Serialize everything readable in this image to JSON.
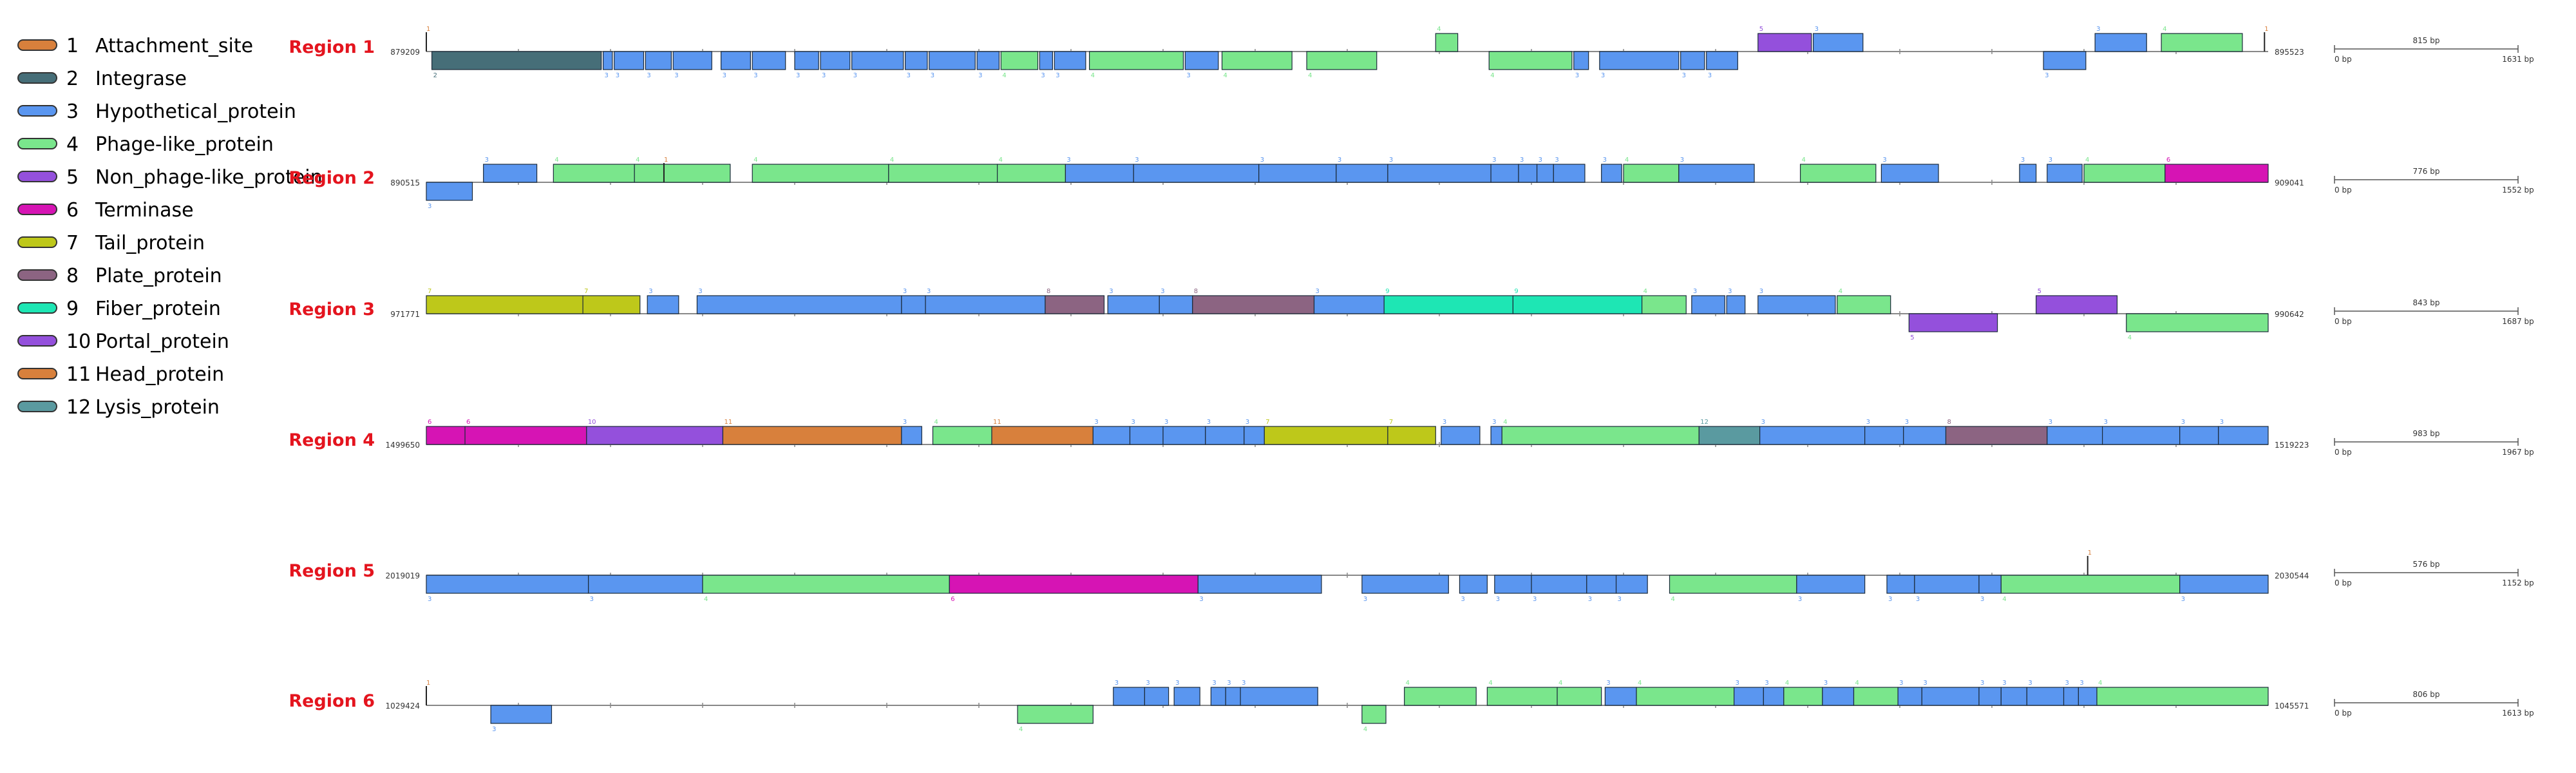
{
  "legend": [
    {
      "num": "1",
      "label": "Attachment_site",
      "color": "#d8803c"
    },
    {
      "num": "2",
      "label": "Integrase",
      "color": "#466e78"
    },
    {
      "num": "3",
      "label": "Hypothetical_protein",
      "color": "#5a96f0"
    },
    {
      "num": "4",
      "label": "Phage-like_protein",
      "color": "#7ae68c"
    },
    {
      "num": "5",
      "label": "Non_phage-like_protein",
      "color": "#9450dc"
    },
    {
      "num": "6",
      "label": "Terminase",
      "color": "#d614b4"
    },
    {
      "num": "7",
      "label": "Tail_protein",
      "color": "#bec81a"
    },
    {
      "num": "8",
      "label": "Plate_protein",
      "color": "#8c6482"
    },
    {
      "num": "9",
      "label": "Fiber_protein",
      "color": "#1ee6b4"
    },
    {
      "num": "10",
      "label": "Portal_protein",
      "color": "#9450dc"
    },
    {
      "num": "11",
      "label": "Head_protein",
      "color": "#d8803c"
    },
    {
      "num": "12",
      "label": "Lysis_protein",
      "color": "#5a9aa0"
    }
  ],
  "regions": [
    {
      "name": "Region 1",
      "start": "879209",
      "end": "895523",
      "scale_label": "815 bp",
      "scale_start": "0 bp",
      "scale_end": "1631 bp",
      "genes": [
        {
          "t": 1,
          "s": 0.0,
          "e": 0.002,
          "st": "mark"
        },
        {
          "t": 2,
          "s": 0.003,
          "e": 0.095,
          "st": "bottom"
        },
        {
          "t": 3,
          "s": 0.096,
          "e": 0.101,
          "st": "bottom"
        },
        {
          "t": 3,
          "s": 0.102,
          "e": 0.118,
          "st": "bottom"
        },
        {
          "t": 3,
          "s": 0.119,
          "e": 0.133,
          "st": "bottom"
        },
        {
          "t": 3,
          "s": 0.134,
          "e": 0.155,
          "st": "bottom"
        },
        {
          "t": 3,
          "s": 0.16,
          "e": 0.176,
          "st": "bottom"
        },
        {
          "t": 3,
          "s": 0.177,
          "e": 0.195,
          "st": "bottom"
        },
        {
          "t": 3,
          "s": 0.2,
          "e": 0.213,
          "st": "bottom"
        },
        {
          "t": 3,
          "s": 0.214,
          "e": 0.23,
          "st": "bottom"
        },
        {
          "t": 3,
          "s": 0.231,
          "e": 0.259,
          "st": "bottom"
        },
        {
          "t": 3,
          "s": 0.26,
          "e": 0.272,
          "st": "bottom"
        },
        {
          "t": 3,
          "s": 0.273,
          "e": 0.298,
          "st": "bottom"
        },
        {
          "t": 3,
          "s": 0.299,
          "e": 0.311,
          "st": "bottom"
        },
        {
          "t": 4,
          "s": 0.312,
          "e": 0.332,
          "st": "bottom"
        },
        {
          "t": 3,
          "s": 0.333,
          "e": 0.34,
          "st": "bottom"
        },
        {
          "t": 3,
          "s": 0.341,
          "e": 0.358,
          "st": "bottom"
        },
        {
          "t": 4,
          "s": 0.36,
          "e": 0.411,
          "st": "bottom"
        },
        {
          "t": 3,
          "s": 0.412,
          "e": 0.43,
          "st": "bottom"
        },
        {
          "t": 4,
          "s": 0.432,
          "e": 0.47,
          "st": "bottom"
        },
        {
          "t": 4,
          "s": 0.478,
          "e": 0.516,
          "st": "bottom"
        },
        {
          "t": 4,
          "s": 0.548,
          "e": 0.56,
          "st": "top"
        },
        {
          "t": 4,
          "s": 0.577,
          "e": 0.622,
          "st": "bottom"
        },
        {
          "t": 3,
          "s": 0.623,
          "e": 0.631,
          "st": "bottom"
        },
        {
          "t": 3,
          "s": 0.637,
          "e": 0.68,
          "st": "bottom"
        },
        {
          "t": 3,
          "s": 0.681,
          "e": 0.694,
          "st": "bottom"
        },
        {
          "t": 3,
          "s": 0.695,
          "e": 0.712,
          "st": "bottom"
        },
        {
          "t": 5,
          "s": 0.723,
          "e": 0.752,
          "st": "top"
        },
        {
          "t": 3,
          "s": 0.753,
          "e": 0.78,
          "st": "top"
        },
        {
          "t": 3,
          "s": 0.878,
          "e": 0.901,
          "st": "bottom"
        },
        {
          "t": 3,
          "s": 0.906,
          "e": 0.934,
          "st": "top"
        },
        {
          "t": 4,
          "s": 0.942,
          "e": 0.986,
          "st": "top"
        },
        {
          "t": 1,
          "s": 0.998,
          "e": 1.0,
          "st": "mark"
        }
      ]
    },
    {
      "name": "Region 2",
      "start": "890515",
      "end": "909041",
      "scale_label": "776 bp",
      "scale_start": "0 bp",
      "scale_end": "1552 bp",
      "genes": [
        {
          "t": 3,
          "s": 0.0,
          "e": 0.025,
          "st": "bottom"
        },
        {
          "t": 3,
          "s": 0.031,
          "e": 0.06,
          "st": "top"
        },
        {
          "t": 4,
          "s": 0.069,
          "e": 0.113,
          "st": "top"
        },
        {
          "t": 4,
          "s": 0.113,
          "e": 0.165,
          "st": "top"
        },
        {
          "t": 1,
          "s": 0.129,
          "e": 0.131,
          "st": "mark"
        },
        {
          "t": 4,
          "s": 0.177,
          "e": 0.251,
          "st": "top"
        },
        {
          "t": 4,
          "s": 0.251,
          "e": 0.31,
          "st": "top"
        },
        {
          "t": 4,
          "s": 0.31,
          "e": 0.347,
          "st": "top"
        },
        {
          "t": 3,
          "s": 0.347,
          "e": 0.384,
          "st": "top"
        },
        {
          "t": 3,
          "s": 0.384,
          "e": 0.452,
          "st": "top"
        },
        {
          "t": 3,
          "s": 0.452,
          "e": 0.494,
          "st": "top"
        },
        {
          "t": 3,
          "s": 0.494,
          "e": 0.522,
          "st": "top"
        },
        {
          "t": 3,
          "s": 0.522,
          "e": 0.578,
          "st": "top"
        },
        {
          "t": 3,
          "s": 0.578,
          "e": 0.593,
          "st": "top"
        },
        {
          "t": 3,
          "s": 0.593,
          "e": 0.603,
          "st": "top"
        },
        {
          "t": 3,
          "s": 0.603,
          "e": 0.612,
          "st": "top"
        },
        {
          "t": 3,
          "s": 0.612,
          "e": 0.629,
          "st": "top"
        },
        {
          "t": 3,
          "s": 0.638,
          "e": 0.649,
          "st": "top"
        },
        {
          "t": 4,
          "s": 0.65,
          "e": 0.68,
          "st": "top"
        },
        {
          "t": 3,
          "s": 0.68,
          "e": 0.721,
          "st": "top"
        },
        {
          "t": 4,
          "s": 0.746,
          "e": 0.787,
          "st": "top"
        },
        {
          "t": 3,
          "s": 0.79,
          "e": 0.821,
          "st": "top"
        },
        {
          "t": 3,
          "s": 0.865,
          "e": 0.874,
          "st": "top"
        },
        {
          "t": 3,
          "s": 0.88,
          "e": 0.899,
          "st": "top"
        },
        {
          "t": 4,
          "s": 0.9,
          "e": 0.944,
          "st": "top"
        },
        {
          "t": 6,
          "s": 0.944,
          "e": 1.0,
          "st": "top"
        }
      ]
    },
    {
      "name": "Region 3",
      "start": "971771",
      "end": "990642",
      "scale_label": "843 bp",
      "scale_start": "0 bp",
      "scale_end": "1687 bp",
      "genes": [
        {
          "t": 7,
          "s": 0.0,
          "e": 0.085,
          "st": "top"
        },
        {
          "t": 7,
          "s": 0.085,
          "e": 0.116,
          "st": "top"
        },
        {
          "t": 3,
          "s": 0.12,
          "e": 0.137,
          "st": "top"
        },
        {
          "t": 3,
          "s": 0.147,
          "e": 0.258,
          "st": "top"
        },
        {
          "t": 3,
          "s": 0.258,
          "e": 0.271,
          "st": "top"
        },
        {
          "t": 3,
          "s": 0.271,
          "e": 0.336,
          "st": "top"
        },
        {
          "t": 8,
          "s": 0.336,
          "e": 0.368,
          "st": "top"
        },
        {
          "t": 3,
          "s": 0.37,
          "e": 0.398,
          "st": "top"
        },
        {
          "t": 3,
          "s": 0.398,
          "e": 0.416,
          "st": "top"
        },
        {
          "t": 8,
          "s": 0.416,
          "e": 0.482,
          "st": "top"
        },
        {
          "t": 3,
          "s": 0.482,
          "e": 0.52,
          "st": "top"
        },
        {
          "t": 9,
          "s": 0.52,
          "e": 0.59,
          "st": "top"
        },
        {
          "t": 9,
          "s": 0.59,
          "e": 0.66,
          "st": "top"
        },
        {
          "t": 4,
          "s": 0.66,
          "e": 0.684,
          "st": "top"
        },
        {
          "t": 3,
          "s": 0.687,
          "e": 0.705,
          "st": "top"
        },
        {
          "t": 3,
          "s": 0.706,
          "e": 0.716,
          "st": "top"
        },
        {
          "t": 3,
          "s": 0.723,
          "e": 0.765,
          "st": "top"
        },
        {
          "t": 4,
          "s": 0.766,
          "e": 0.795,
          "st": "top"
        },
        {
          "t": 5,
          "s": 0.805,
          "e": 0.853,
          "st": "bottom"
        },
        {
          "t": 5,
          "s": 0.874,
          "e": 0.918,
          "st": "top"
        },
        {
          "t": 4,
          "s": 0.923,
          "e": 1.0,
          "st": "bottom"
        }
      ]
    },
    {
      "name": "Region 4",
      "start": "1499650",
      "end": "1519223",
      "scale_label": "983 bp",
      "scale_start": "0 bp",
      "scale_end": "1967 bp",
      "genes": [
        {
          "t": 6,
          "s": 0.0,
          "e": 0.021,
          "st": "top"
        },
        {
          "t": 6,
          "s": 0.021,
          "e": 0.087,
          "st": "top"
        },
        {
          "t": 10,
          "s": 0.087,
          "e": 0.161,
          "st": "top"
        },
        {
          "t": 11,
          "s": 0.161,
          "e": 0.258,
          "st": "top"
        },
        {
          "t": 3,
          "s": 0.258,
          "e": 0.269,
          "st": "top"
        },
        {
          "t": 4,
          "s": 0.275,
          "e": 0.307,
          "st": "top"
        },
        {
          "t": 11,
          "s": 0.307,
          "e": 0.362,
          "st": "top"
        },
        {
          "t": 3,
          "s": 0.362,
          "e": 0.382,
          "st": "top"
        },
        {
          "t": 3,
          "s": 0.382,
          "e": 0.4,
          "st": "top"
        },
        {
          "t": 3,
          "s": 0.4,
          "e": 0.423,
          "st": "top"
        },
        {
          "t": 3,
          "s": 0.423,
          "e": 0.444,
          "st": "top"
        },
        {
          "t": 3,
          "s": 0.444,
          "e": 0.455,
          "st": "top"
        },
        {
          "t": 7,
          "s": 0.455,
          "e": 0.522,
          "st": "top"
        },
        {
          "t": 7,
          "s": 0.522,
          "e": 0.548,
          "st": "top"
        },
        {
          "t": 3,
          "s": 0.551,
          "e": 0.572,
          "st": "top"
        },
        {
          "t": 3,
          "s": 0.578,
          "e": 0.584,
          "st": "top"
        },
        {
          "t": 4,
          "s": 0.584,
          "e": 0.691,
          "st": "top"
        },
        {
          "t": 12,
          "s": 0.691,
          "e": 0.724,
          "st": "top"
        },
        {
          "t": 3,
          "s": 0.724,
          "e": 0.781,
          "st": "top"
        },
        {
          "t": 3,
          "s": 0.781,
          "e": 0.802,
          "st": "top"
        },
        {
          "t": 3,
          "s": 0.802,
          "e": 0.825,
          "st": "top"
        },
        {
          "t": 8,
          "s": 0.825,
          "e": 0.88,
          "st": "top"
        },
        {
          "t": 3,
          "s": 0.88,
          "e": 0.91,
          "st": "top"
        },
        {
          "t": 3,
          "s": 0.91,
          "e": 0.952,
          "st": "top"
        },
        {
          "t": 3,
          "s": 0.952,
          "e": 0.973,
          "st": "top"
        },
        {
          "t": 3,
          "s": 0.973,
          "e": 1.0,
          "st": "top"
        }
      ]
    },
    {
      "name": "Region 5",
      "start": "2019019",
      "end": "2030544",
      "scale_label": "576 bp",
      "scale_start": "0 bp",
      "scale_end": "1152 bp",
      "genes": [
        {
          "t": 3,
          "s": 0.0,
          "e": 0.088,
          "st": "bottom"
        },
        {
          "t": 3,
          "s": 0.088,
          "e": 0.15,
          "st": "bottom"
        },
        {
          "t": 4,
          "s": 0.15,
          "e": 0.284,
          "st": "bottom"
        },
        {
          "t": 6,
          "s": 0.284,
          "e": 0.419,
          "st": "bottom"
        },
        {
          "t": 3,
          "s": 0.419,
          "e": 0.486,
          "st": "bottom"
        },
        {
          "t": 3,
          "s": 0.508,
          "e": 0.555,
          "st": "bottom"
        },
        {
          "t": 3,
          "s": 0.561,
          "e": 0.576,
          "st": "bottom"
        },
        {
          "t": 3,
          "s": 0.58,
          "e": 0.6,
          "st": "bottom"
        },
        {
          "t": 3,
          "s": 0.6,
          "e": 0.63,
          "st": "bottom"
        },
        {
          "t": 3,
          "s": 0.63,
          "e": 0.646,
          "st": "bottom"
        },
        {
          "t": 3,
          "s": 0.646,
          "e": 0.663,
          "st": "bottom"
        },
        {
          "t": 4,
          "s": 0.675,
          "e": 0.744,
          "st": "bottom"
        },
        {
          "t": 3,
          "s": 0.744,
          "e": 0.781,
          "st": "bottom"
        },
        {
          "t": 3,
          "s": 0.793,
          "e": 0.808,
          "st": "bottom"
        },
        {
          "t": 3,
          "s": 0.808,
          "e": 0.843,
          "st": "bottom"
        },
        {
          "t": 3,
          "s": 0.843,
          "e": 0.855,
          "st": "bottom"
        },
        {
          "t": 4,
          "s": 0.855,
          "e": 0.952,
          "st": "bottom"
        },
        {
          "t": 1,
          "s": 0.902,
          "e": 0.904,
          "st": "mark"
        },
        {
          "t": 3,
          "s": 0.952,
          "e": 1.0,
          "st": "bottom"
        }
      ]
    },
    {
      "name": "Region 6",
      "start": "1029424",
      "end": "1045571",
      "scale_label": "806 bp",
      "scale_start": "0 bp",
      "scale_end": "1613 bp",
      "genes": [
        {
          "t": 1,
          "s": 0.0,
          "e": 0.002,
          "st": "mark"
        },
        {
          "t": 3,
          "s": 0.035,
          "e": 0.068,
          "st": "bottom"
        },
        {
          "t": 4,
          "s": 0.321,
          "e": 0.362,
          "st": "bottom"
        },
        {
          "t": 3,
          "s": 0.373,
          "e": 0.39,
          "st": "top"
        },
        {
          "t": 3,
          "s": 0.39,
          "e": 0.403,
          "st": "top"
        },
        {
          "t": 3,
          "s": 0.406,
          "e": 0.42,
          "st": "top"
        },
        {
          "t": 3,
          "s": 0.426,
          "e": 0.434,
          "st": "top"
        },
        {
          "t": 3,
          "s": 0.434,
          "e": 0.442,
          "st": "top"
        },
        {
          "t": 3,
          "s": 0.442,
          "e": 0.484,
          "st": "top"
        },
        {
          "t": 4,
          "s": 0.508,
          "e": 0.521,
          "st": "bottom"
        },
        {
          "t": 4,
          "s": 0.531,
          "e": 0.57,
          "st": "top"
        },
        {
          "t": 4,
          "s": 0.576,
          "e": 0.614,
          "st": "top"
        },
        {
          "t": 4,
          "s": 0.614,
          "e": 0.638,
          "st": "top"
        },
        {
          "t": 3,
          "s": 0.64,
          "e": 0.657,
          "st": "top"
        },
        {
          "t": 4,
          "s": 0.657,
          "e": 0.71,
          "st": "top"
        },
        {
          "t": 3,
          "s": 0.71,
          "e": 0.726,
          "st": "top"
        },
        {
          "t": 3,
          "s": 0.726,
          "e": 0.737,
          "st": "top"
        },
        {
          "t": 4,
          "s": 0.737,
          "e": 0.758,
          "st": "top"
        },
        {
          "t": 3,
          "s": 0.758,
          "e": 0.775,
          "st": "top"
        },
        {
          "t": 4,
          "s": 0.775,
          "e": 0.799,
          "st": "top"
        },
        {
          "t": 3,
          "s": 0.799,
          "e": 0.812,
          "st": "top"
        },
        {
          "t": 3,
          "s": 0.812,
          "e": 0.843,
          "st": "top"
        },
        {
          "t": 3,
          "s": 0.843,
          "e": 0.855,
          "st": "top"
        },
        {
          "t": 3,
          "s": 0.855,
          "e": 0.869,
          "st": "top"
        },
        {
          "t": 3,
          "s": 0.869,
          "e": 0.889,
          "st": "top"
        },
        {
          "t": 3,
          "s": 0.889,
          "e": 0.897,
          "st": "top"
        },
        {
          "t": 3,
          "s": 0.897,
          "e": 0.907,
          "st": "top"
        },
        {
          "t": 4,
          "s": 0.907,
          "e": 1.0,
          "st": "top"
        }
      ]
    }
  ]
}
